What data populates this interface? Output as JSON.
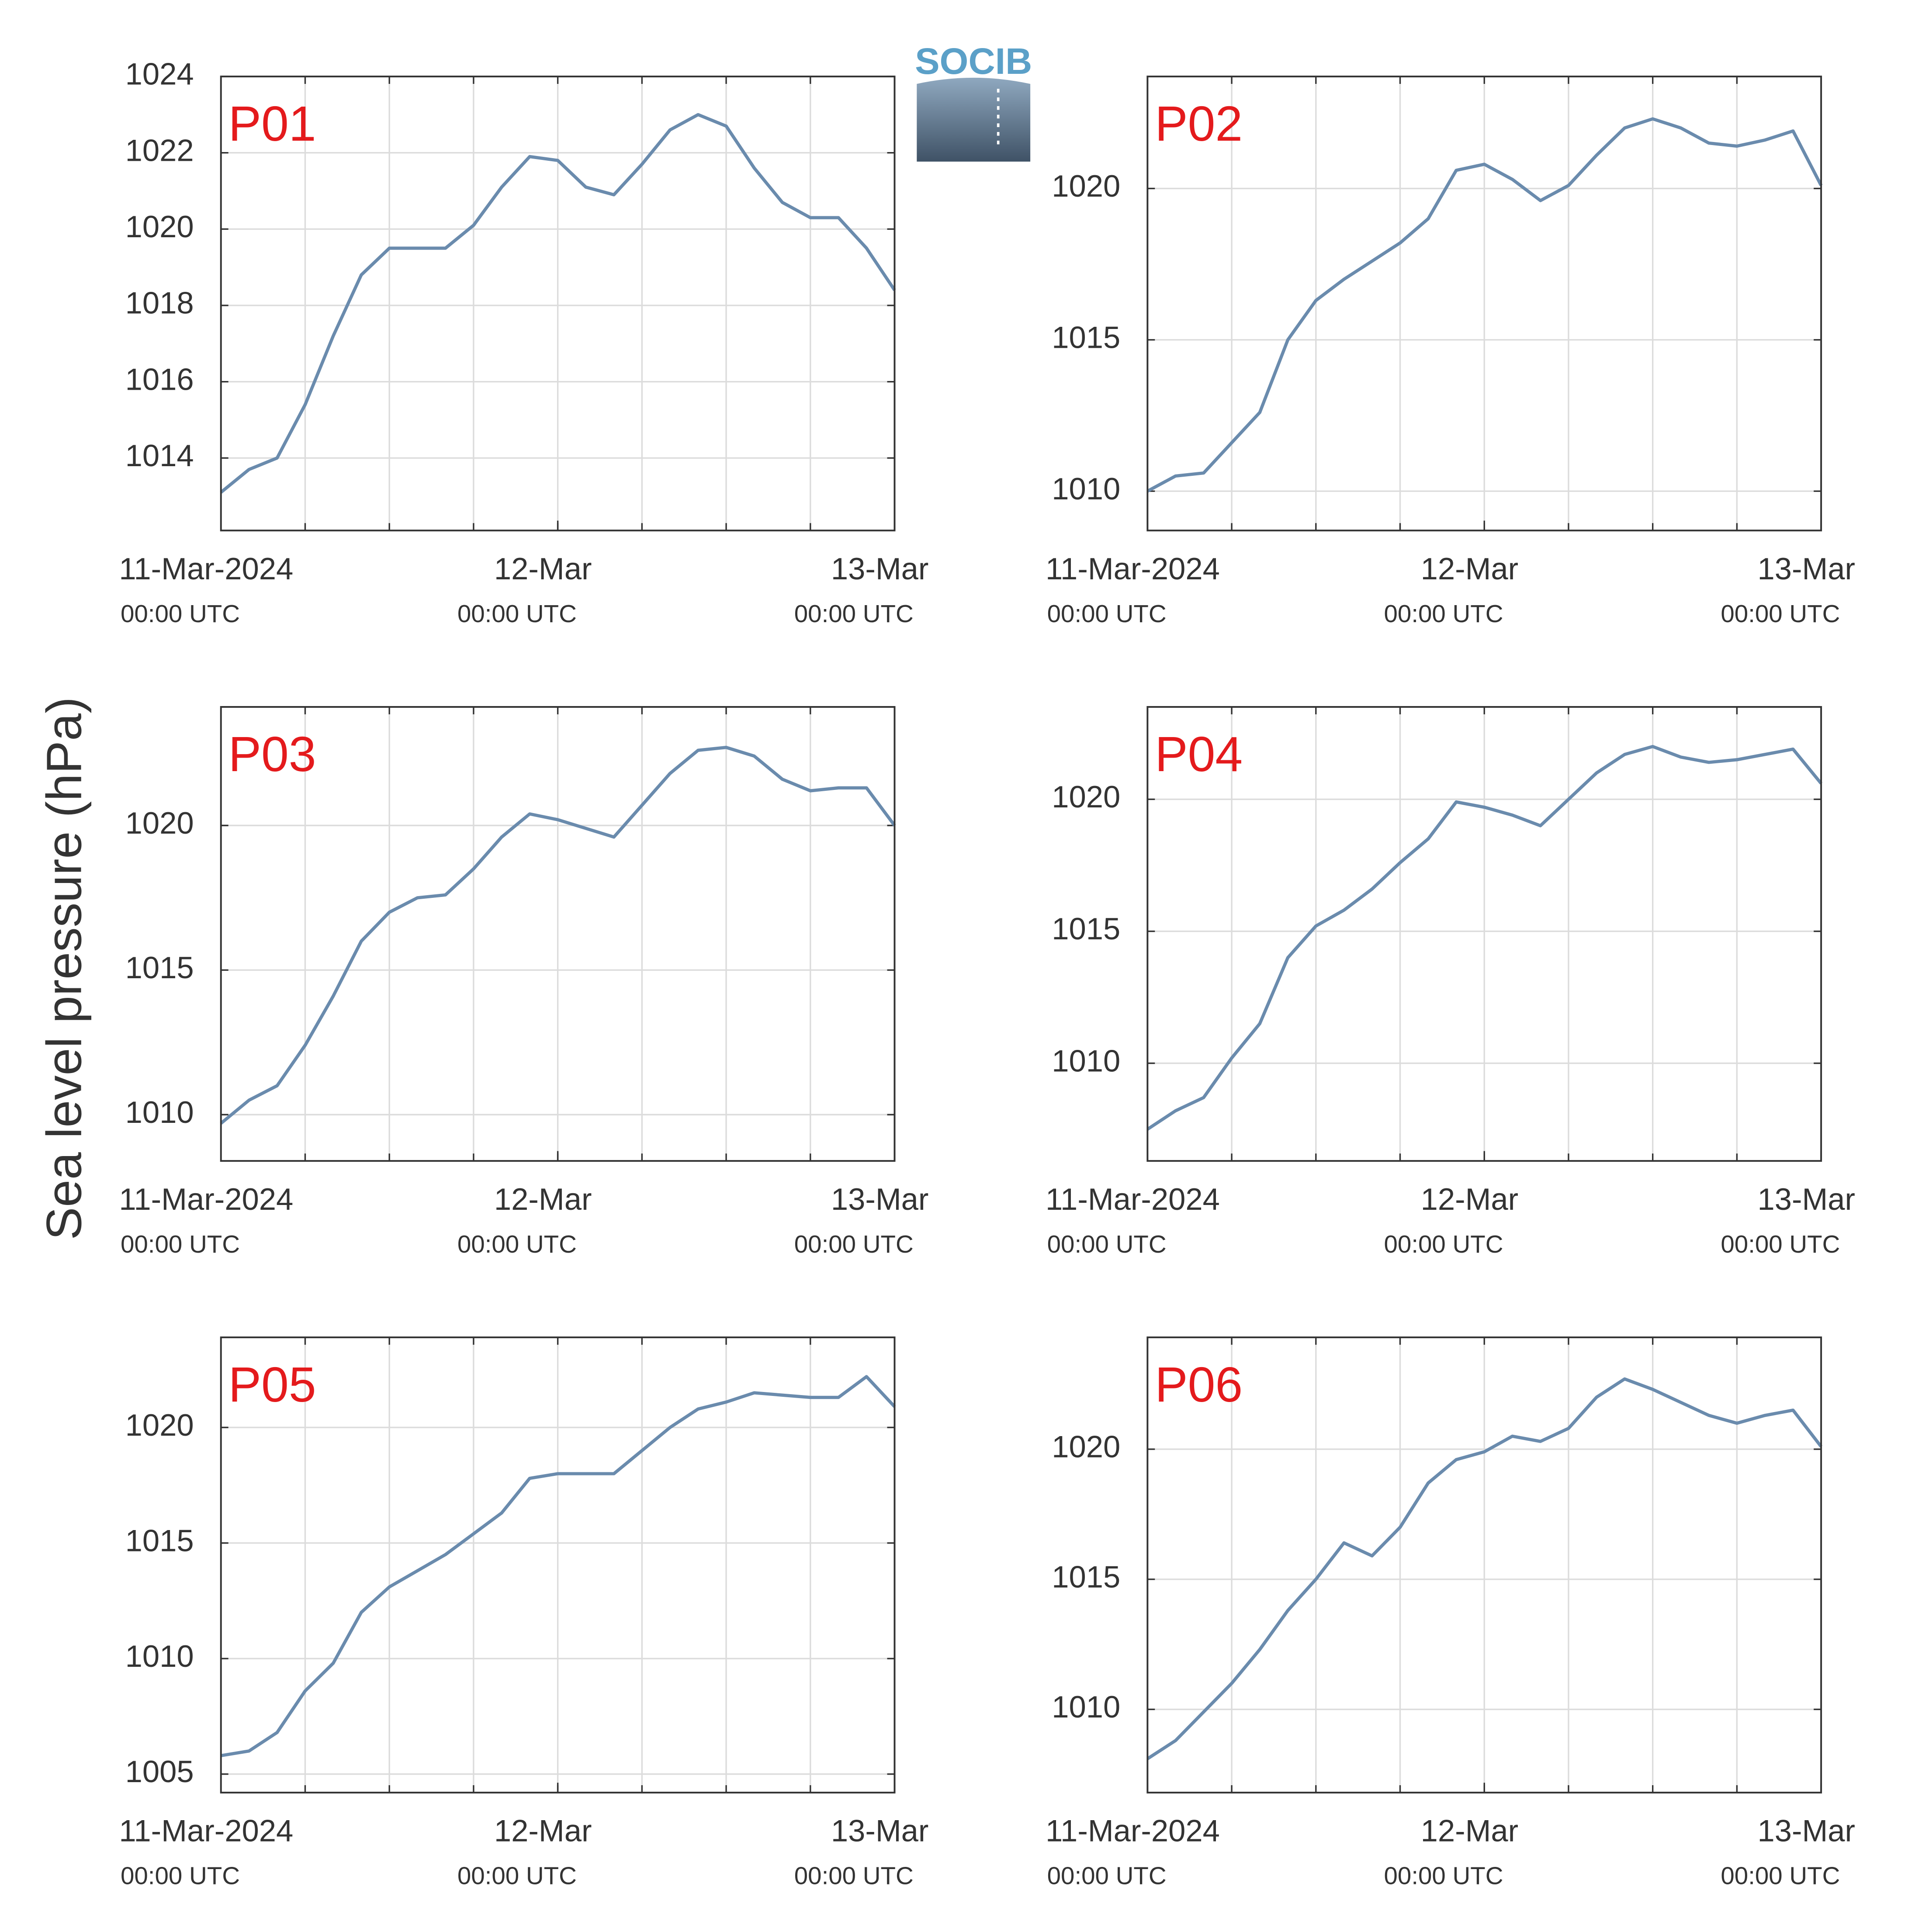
{
  "ylabel": "Sea level pressure (hPa)",
  "logo_text": "SOCIB",
  "chart_data": [
    {
      "type": "line",
      "title": "P01",
      "color": "#6a8bad",
      "x": [
        "2024-03-11T00:00",
        "2024-03-11T02:00",
        "2024-03-11T04:00",
        "2024-03-11T06:00",
        "2024-03-11T08:00",
        "2024-03-11T10:00",
        "2024-03-11T12:00",
        "2024-03-11T14:00",
        "2024-03-11T16:00",
        "2024-03-11T18:00",
        "2024-03-11T20:00",
        "2024-03-11T22:00",
        "2024-03-12T00:00",
        "2024-03-12T02:00",
        "2024-03-12T04:00",
        "2024-03-12T06:00",
        "2024-03-12T08:00",
        "2024-03-12T10:00",
        "2024-03-12T12:00",
        "2024-03-12T14:00",
        "2024-03-12T16:00",
        "2024-03-12T18:00",
        "2024-03-12T20:00",
        "2024-03-12T22:00",
        "2024-03-13T00:00"
      ],
      "values": [
        1013.1,
        1013.7,
        1014.0,
        1015.4,
        1017.2,
        1018.8,
        1019.5,
        1019.5,
        1019.5,
        1020.1,
        1021.1,
        1021.9,
        1021.8,
        1021.1,
        1020.9,
        1021.7,
        1022.6,
        1023.0,
        1022.7,
        1021.6,
        1020.7,
        1020.3,
        1020.3,
        1019.5,
        1018.4
      ],
      "xlim": [
        "2024-03-11T00:00",
        "2024-03-13T00:00"
      ],
      "xticks": [
        {
          "value": "2024-03-11T00:00",
          "label": "11-Mar-2024",
          "time_label": "00:00 UTC"
        },
        {
          "value": "2024-03-12T00:00",
          "label": "12-Mar",
          "time_label": "00:00 UTC"
        },
        {
          "value": "2024-03-13T00:00",
          "label": "13-Mar",
          "time_label": "00:00 UTC"
        }
      ],
      "xgrid": [
        "2024-03-11T00:00",
        "2024-03-11T06:00",
        "2024-03-11T12:00",
        "2024-03-11T18:00",
        "2024-03-12T00:00",
        "2024-03-12T06:00",
        "2024-03-12T12:00",
        "2024-03-12T18:00",
        "2024-03-13T00:00"
      ],
      "ylim": [
        1012.1,
        1024
      ],
      "yticks": [
        1014,
        1016,
        1018,
        1020,
        1022,
        1024
      ],
      "grid": true
    },
    {
      "type": "line",
      "title": "P02",
      "color": "#6a8bad",
      "x": [
        "2024-03-11T00:00",
        "2024-03-11T02:00",
        "2024-03-11T04:00",
        "2024-03-11T06:00",
        "2024-03-11T08:00",
        "2024-03-11T10:00",
        "2024-03-11T12:00",
        "2024-03-11T14:00",
        "2024-03-11T16:00",
        "2024-03-11T18:00",
        "2024-03-11T20:00",
        "2024-03-11T22:00",
        "2024-03-12T00:00",
        "2024-03-12T02:00",
        "2024-03-12T04:00",
        "2024-03-12T06:00",
        "2024-03-12T08:00",
        "2024-03-12T10:00",
        "2024-03-12T12:00",
        "2024-03-12T14:00",
        "2024-03-12T16:00",
        "2024-03-12T18:00",
        "2024-03-12T20:00",
        "2024-03-12T22:00",
        "2024-03-13T00:00"
      ],
      "values": [
        1010.0,
        1010.5,
        1010.6,
        1011.6,
        1012.6,
        1015.0,
        1016.3,
        1017.0,
        1017.6,
        1018.2,
        1019.0,
        1020.6,
        1020.8,
        1020.3,
        1019.6,
        1020.1,
        1021.1,
        1022.0,
        1022.3,
        1022.0,
        1021.5,
        1021.4,
        1021.6,
        1021.9,
        1020.1
      ],
      "xlim": [
        "2024-03-11T00:00",
        "2024-03-13T00:00"
      ],
      "xticks": [
        {
          "value": "2024-03-11T00:00",
          "label": "11-Mar-2024",
          "time_label": "00:00 UTC"
        },
        {
          "value": "2024-03-12T00:00",
          "label": "12-Mar",
          "time_label": "00:00 UTC"
        },
        {
          "value": "2024-03-13T00:00",
          "label": "13-Mar",
          "time_label": "00:00 UTC"
        }
      ],
      "xgrid": [
        "2024-03-11T00:00",
        "2024-03-11T06:00",
        "2024-03-11T12:00",
        "2024-03-11T18:00",
        "2024-03-12T00:00",
        "2024-03-12T06:00",
        "2024-03-12T12:00",
        "2024-03-12T18:00",
        "2024-03-13T00:00"
      ],
      "ylim": [
        1008.7,
        1023.7
      ],
      "yticks": [
        1010,
        1015,
        1020
      ],
      "grid": true
    },
    {
      "type": "line",
      "title": "P03",
      "color": "#6a8bad",
      "x": [
        "2024-03-11T00:00",
        "2024-03-11T02:00",
        "2024-03-11T04:00",
        "2024-03-11T06:00",
        "2024-03-11T08:00",
        "2024-03-11T10:00",
        "2024-03-11T12:00",
        "2024-03-11T14:00",
        "2024-03-11T16:00",
        "2024-03-11T18:00",
        "2024-03-11T20:00",
        "2024-03-11T22:00",
        "2024-03-12T00:00",
        "2024-03-12T02:00",
        "2024-03-12T04:00",
        "2024-03-12T06:00",
        "2024-03-12T08:00",
        "2024-03-12T10:00",
        "2024-03-12T12:00",
        "2024-03-12T14:00",
        "2024-03-12T16:00",
        "2024-03-12T18:00",
        "2024-03-12T20:00",
        "2024-03-12T22:00",
        "2024-03-13T00:00"
      ],
      "values": [
        1009.7,
        1010.5,
        1011.0,
        1012.4,
        1014.1,
        1016.0,
        1017.0,
        1017.5,
        1017.6,
        1018.5,
        1019.6,
        1020.4,
        1020.2,
        1019.9,
        1019.6,
        1020.7,
        1021.8,
        1022.6,
        1022.7,
        1022.4,
        1021.6,
        1021.2,
        1021.3,
        1021.3,
        1020.0
      ],
      "xlim": [
        "2024-03-11T00:00",
        "2024-03-13T00:00"
      ],
      "xticks": [
        {
          "value": "2024-03-11T00:00",
          "label": "11-Mar-2024",
          "time_label": "00:00 UTC"
        },
        {
          "value": "2024-03-12T00:00",
          "label": "12-Mar",
          "time_label": "00:00 UTC"
        },
        {
          "value": "2024-03-13T00:00",
          "label": "13-Mar",
          "time_label": "00:00 UTC"
        }
      ],
      "xgrid": [
        "2024-03-11T00:00",
        "2024-03-11T06:00",
        "2024-03-11T12:00",
        "2024-03-11T18:00",
        "2024-03-12T00:00",
        "2024-03-12T06:00",
        "2024-03-12T12:00",
        "2024-03-12T18:00",
        "2024-03-13T00:00"
      ],
      "ylim": [
        1008.4,
        1024.1
      ],
      "yticks": [
        1010,
        1015,
        1020
      ],
      "grid": true
    },
    {
      "type": "line",
      "title": "P04",
      "color": "#6a8bad",
      "x": [
        "2024-03-11T00:00",
        "2024-03-11T02:00",
        "2024-03-11T04:00",
        "2024-03-11T06:00",
        "2024-03-11T08:00",
        "2024-03-11T10:00",
        "2024-03-11T12:00",
        "2024-03-11T14:00",
        "2024-03-11T16:00",
        "2024-03-11T18:00",
        "2024-03-11T20:00",
        "2024-03-11T22:00",
        "2024-03-12T00:00",
        "2024-03-12T02:00",
        "2024-03-12T04:00",
        "2024-03-12T06:00",
        "2024-03-12T08:00",
        "2024-03-12T10:00",
        "2024-03-12T12:00",
        "2024-03-12T14:00",
        "2024-03-12T16:00",
        "2024-03-12T18:00",
        "2024-03-12T20:00",
        "2024-03-12T22:00",
        "2024-03-13T00:00"
      ],
      "values": [
        1007.5,
        1008.2,
        1008.7,
        1010.2,
        1011.5,
        1014.0,
        1015.2,
        1015.8,
        1016.6,
        1017.6,
        1018.5,
        1019.9,
        1019.7,
        1019.4,
        1019.0,
        1020.0,
        1021.0,
        1021.7,
        1022.0,
        1021.6,
        1021.4,
        1021.5,
        1021.7,
        1021.9,
        1020.6
      ],
      "xlim": [
        "2024-03-11T00:00",
        "2024-03-13T00:00"
      ],
      "xticks": [
        {
          "value": "2024-03-11T00:00",
          "label": "11-Mar-2024",
          "time_label": "00:00 UTC"
        },
        {
          "value": "2024-03-12T00:00",
          "label": "12-Mar",
          "time_label": "00:00 UTC"
        },
        {
          "value": "2024-03-13T00:00",
          "label": "13-Mar",
          "time_label": "00:00 UTC"
        }
      ],
      "xgrid": [
        "2024-03-11T00:00",
        "2024-03-11T06:00",
        "2024-03-11T12:00",
        "2024-03-11T18:00",
        "2024-03-12T00:00",
        "2024-03-12T06:00",
        "2024-03-12T12:00",
        "2024-03-12T18:00",
        "2024-03-13T00:00"
      ],
      "ylim": [
        1006.3,
        1023.5
      ],
      "yticks": [
        1010,
        1015,
        1020
      ],
      "grid": true
    },
    {
      "type": "line",
      "title": "P05",
      "color": "#6a8bad",
      "x": [
        "2024-03-11T00:00",
        "2024-03-11T02:00",
        "2024-03-11T04:00",
        "2024-03-11T06:00",
        "2024-03-11T08:00",
        "2024-03-11T10:00",
        "2024-03-11T12:00",
        "2024-03-11T14:00",
        "2024-03-11T16:00",
        "2024-03-11T18:00",
        "2024-03-11T20:00",
        "2024-03-11T22:00",
        "2024-03-12T00:00",
        "2024-03-12T02:00",
        "2024-03-12T04:00",
        "2024-03-12T06:00",
        "2024-03-12T08:00",
        "2024-03-12T10:00",
        "2024-03-12T12:00",
        "2024-03-12T14:00",
        "2024-03-12T16:00",
        "2024-03-12T18:00",
        "2024-03-12T20:00",
        "2024-03-12T22:00",
        "2024-03-13T00:00"
      ],
      "values": [
        1005.8,
        1006.0,
        1006.8,
        1008.6,
        1009.8,
        1012.0,
        1013.1,
        1013.8,
        1014.5,
        1015.4,
        1016.3,
        1017.8,
        1018.0,
        1018.0,
        1018.0,
        1019.0,
        1020.0,
        1020.8,
        1021.1,
        1021.5,
        1021.4,
        1021.3,
        1021.3,
        1022.2,
        1020.9
      ],
      "xlim": [
        "2024-03-11T00:00",
        "2024-03-13T00:00"
      ],
      "xticks": [
        {
          "value": "2024-03-11T00:00",
          "label": "11-Mar-2024",
          "time_label": "00:00 UTC"
        },
        {
          "value": "2024-03-12T00:00",
          "label": "12-Mar",
          "time_label": "00:00 UTC"
        },
        {
          "value": "2024-03-13T00:00",
          "label": "13-Mar",
          "time_label": "00:00 UTC"
        }
      ],
      "xgrid": [
        "2024-03-11T00:00",
        "2024-03-11T06:00",
        "2024-03-11T12:00",
        "2024-03-11T18:00",
        "2024-03-12T00:00",
        "2024-03-12T06:00",
        "2024-03-12T12:00",
        "2024-03-12T18:00",
        "2024-03-13T00:00"
      ],
      "ylim": [
        1004.2,
        1023.9
      ],
      "yticks": [
        1005,
        1010,
        1015,
        1020
      ],
      "grid": true
    },
    {
      "type": "line",
      "title": "P06",
      "color": "#6a8bad",
      "x": [
        "2024-03-11T00:00",
        "2024-03-11T02:00",
        "2024-03-11T04:00",
        "2024-03-11T06:00",
        "2024-03-11T08:00",
        "2024-03-11T10:00",
        "2024-03-11T12:00",
        "2024-03-11T14:00",
        "2024-03-11T16:00",
        "2024-03-11T18:00",
        "2024-03-11T20:00",
        "2024-03-11T22:00",
        "2024-03-12T00:00",
        "2024-03-12T02:00",
        "2024-03-12T04:00",
        "2024-03-12T06:00",
        "2024-03-12T08:00",
        "2024-03-12T10:00",
        "2024-03-12T12:00",
        "2024-03-12T14:00",
        "2024-03-12T16:00",
        "2024-03-12T18:00",
        "2024-03-12T20:00",
        "2024-03-12T22:00",
        "2024-03-13T00:00"
      ],
      "values": [
        1008.1,
        1008.8,
        1009.9,
        1011.0,
        1012.3,
        1013.8,
        1015.0,
        1016.4,
        1015.9,
        1017.0,
        1018.7,
        1019.6,
        1019.9,
        1020.5,
        1020.3,
        1020.8,
        1022.0,
        1022.7,
        1022.3,
        1021.8,
        1021.3,
        1021.0,
        1021.3,
        1021.5,
        1020.1
      ],
      "xlim": [
        "2024-03-11T00:00",
        "2024-03-13T00:00"
      ],
      "xticks": [
        {
          "value": "2024-03-11T00:00",
          "label": "11-Mar-2024",
          "time_label": "00:00 UTC"
        },
        {
          "value": "2024-03-12T00:00",
          "label": "12-Mar",
          "time_label": "00:00 UTC"
        },
        {
          "value": "2024-03-13T00:00",
          "label": "13-Mar",
          "time_label": "00:00 UTC"
        }
      ],
      "xgrid": [
        "2024-03-11T00:00",
        "2024-03-11T06:00",
        "2024-03-11T12:00",
        "2024-03-11T18:00",
        "2024-03-12T00:00",
        "2024-03-12T06:00",
        "2024-03-12T12:00",
        "2024-03-12T18:00",
        "2024-03-13T00:00"
      ],
      "ylim": [
        1006.8,
        1024.3
      ],
      "yticks": [
        1010,
        1015,
        1020
      ],
      "grid": true
    }
  ]
}
